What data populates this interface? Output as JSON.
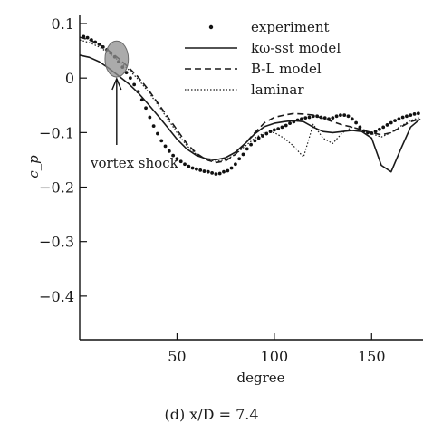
{
  "caption": "(d) x/D = 7.4",
  "chart_data": {
    "type": "line",
    "xlabel": "degree",
    "ylabel": "c_p",
    "xlim": [
      0,
      175
    ],
    "ylim": [
      -0.48,
      0.11
    ],
    "xticks": [
      50,
      100,
      150
    ],
    "xtick_labels": [
      "50",
      "100",
      "150"
    ],
    "yticks": [
      0.1,
      0,
      -0.1,
      -0.2,
      -0.3,
      -0.4
    ],
    "ytick_labels": [
      "0.1",
      "0",
      "−0.1",
      "−0.2",
      "−0.3",
      "−0.4"
    ],
    "grid": false,
    "legend_position": "top-right",
    "annotation": {
      "text": "vortex shock",
      "ellipse_center": [
        19,
        0.035
      ],
      "ellipse_radii": [
        6,
        0.033
      ],
      "arrow_tip": [
        19,
        0.0
      ]
    },
    "series": [
      {
        "name": "experiment",
        "style": "markers",
        "x": [
          2,
          4,
          6,
          8,
          10,
          12,
          14,
          16,
          18,
          20,
          22,
          24,
          26,
          28,
          30,
          32,
          34,
          36,
          38,
          40,
          42,
          44,
          46,
          48,
          50,
          52,
          54,
          56,
          58,
          60,
          62,
          64,
          66,
          68,
          70,
          72,
          74,
          76,
          78,
          80,
          82,
          84,
          86,
          88,
          90,
          92,
          94,
          96,
          98,
          100,
          102,
          104,
          106,
          108,
          110,
          112,
          114,
          116,
          118,
          120,
          122,
          124,
          126,
          128,
          130,
          132,
          134,
          136,
          138,
          140,
          142,
          144,
          146,
          148,
          150,
          152,
          154,
          156,
          158,
          160,
          162,
          164,
          166,
          168,
          170,
          172,
          174
        ],
        "y": [
          0.076,
          0.074,
          0.07,
          0.066,
          0.062,
          0.057,
          0.052,
          0.046,
          0.039,
          0.03,
          0.02,
          0.01,
          0.0,
          -0.012,
          -0.025,
          -0.04,
          -0.055,
          -0.072,
          -0.088,
          -0.102,
          -0.115,
          -0.125,
          -0.134,
          -0.142,
          -0.148,
          -0.153,
          -0.158,
          -0.162,
          -0.165,
          -0.167,
          -0.169,
          -0.171,
          -0.172,
          -0.174,
          -0.176,
          -0.175,
          -0.172,
          -0.17,
          -0.165,
          -0.158,
          -0.148,
          -0.14,
          -0.13,
          -0.122,
          -0.115,
          -0.11,
          -0.106,
          -0.102,
          -0.098,
          -0.095,
          -0.093,
          -0.09,
          -0.087,
          -0.083,
          -0.08,
          -0.077,
          -0.075,
          -0.073,
          -0.072,
          -0.07,
          -0.07,
          -0.072,
          -0.073,
          -0.075,
          -0.073,
          -0.07,
          -0.068,
          -0.068,
          -0.07,
          -0.075,
          -0.082,
          -0.09,
          -0.097,
          -0.1,
          -0.101,
          -0.098,
          -0.094,
          -0.09,
          -0.086,
          -0.082,
          -0.078,
          -0.075,
          -0.072,
          -0.07,
          -0.068,
          -0.066,
          -0.065
        ]
      },
      {
        "name": "kω-sst model",
        "style": "solid",
        "x": [
          0,
          5,
          10,
          15,
          20,
          25,
          30,
          35,
          40,
          45,
          50,
          55,
          60,
          65,
          70,
          75,
          80,
          85,
          90,
          95,
          100,
          105,
          110,
          115,
          120,
          125,
          130,
          135,
          140,
          145,
          150,
          155,
          160,
          165,
          170,
          175
        ],
        "y": [
          0.042,
          0.038,
          0.03,
          0.018,
          0.004,
          -0.01,
          -0.027,
          -0.047,
          -0.068,
          -0.09,
          -0.112,
          -0.13,
          -0.142,
          -0.148,
          -0.15,
          -0.146,
          -0.136,
          -0.12,
          -0.102,
          -0.089,
          -0.083,
          -0.08,
          -0.078,
          -0.08,
          -0.09,
          -0.098,
          -0.1,
          -0.098,
          -0.096,
          -0.098,
          -0.11,
          -0.16,
          -0.172,
          -0.13,
          -0.09,
          -0.075
        ]
      },
      {
        "name": "B-L model",
        "style": "dashed",
        "x": [
          0,
          5,
          10,
          15,
          20,
          25,
          30,
          35,
          40,
          45,
          50,
          55,
          60,
          65,
          70,
          75,
          80,
          85,
          90,
          95,
          100,
          105,
          110,
          115,
          120,
          125,
          130,
          135,
          140,
          145,
          150,
          155,
          160,
          165,
          170,
          175
        ],
        "y": [
          0.075,
          0.07,
          0.062,
          0.05,
          0.036,
          0.02,
          0.002,
          -0.02,
          -0.045,
          -0.07,
          -0.095,
          -0.12,
          -0.138,
          -0.15,
          -0.155,
          -0.152,
          -0.14,
          -0.12,
          -0.1,
          -0.082,
          -0.072,
          -0.068,
          -0.065,
          -0.066,
          -0.068,
          -0.074,
          -0.08,
          -0.086,
          -0.09,
          -0.095,
          -0.1,
          -0.104,
          -0.1,
          -0.09,
          -0.08,
          -0.075
        ]
      },
      {
        "name": "laminar",
        "style": "dotted",
        "x": [
          0,
          5,
          10,
          15,
          20,
          25,
          30,
          35,
          40,
          45,
          50,
          55,
          60,
          65,
          70,
          75,
          80,
          85,
          90,
          95,
          100,
          105,
          110,
          115,
          120,
          125,
          130,
          135,
          140,
          145,
          150,
          155,
          160,
          165,
          170,
          175
        ],
        "y": [
          0.07,
          0.065,
          0.057,
          0.046,
          0.032,
          0.016,
          -0.002,
          -0.024,
          -0.048,
          -0.074,
          -0.1,
          -0.124,
          -0.14,
          -0.15,
          -0.153,
          -0.15,
          -0.14,
          -0.125,
          -0.11,
          -0.1,
          -0.1,
          -0.11,
          -0.125,
          -0.145,
          -0.085,
          -0.11,
          -0.12,
          -0.1,
          -0.09,
          -0.095,
          -0.102,
          -0.108,
          -0.1,
          -0.088,
          -0.078,
          -0.072
        ]
      }
    ]
  }
}
